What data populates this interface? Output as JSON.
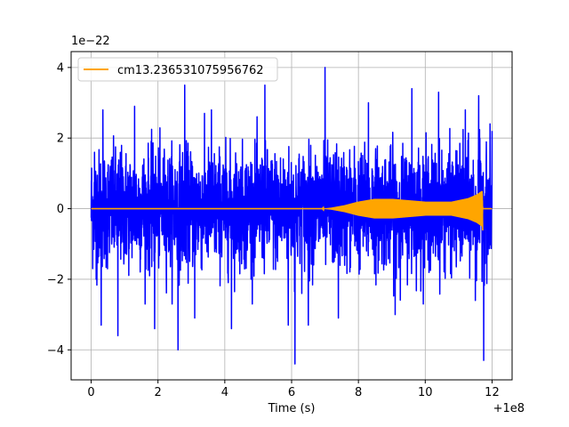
{
  "chart_data": {
    "type": "line",
    "title": "",
    "xlabel": "Time (s)",
    "ylabel": "",
    "x_offset_text": "+1e8",
    "y_scale_text": "1e−22",
    "xlim": [
      -0.6,
      12.6
    ],
    "ylim": [
      -4.85,
      4.45
    ],
    "x_ticks": [
      0,
      2,
      4,
      6,
      8,
      10,
      12
    ],
    "x_tick_labels": [
      "0",
      "2",
      "4",
      "6",
      "8",
      "10",
      "12"
    ],
    "y_ticks": [
      -4,
      -2,
      0,
      2,
      4
    ],
    "y_tick_labels": [
      "−4",
      "−2",
      "0",
      "2",
      "4"
    ],
    "grid": true,
    "legend_position": "top-left",
    "series": [
      {
        "name": "",
        "color": "#0000ff",
        "style": "dense noise",
        "x_range": [
          0,
          12
        ],
        "typical_amplitude": 1.5,
        "spikes": [
          {
            "x": 0.1,
            "y": 1.6
          },
          {
            "x": 0.15,
            "y": -2.0
          },
          {
            "x": 0.3,
            "y": -3.3
          },
          {
            "x": 0.35,
            "y": 2.8
          },
          {
            "x": 0.8,
            "y": -3.6
          },
          {
            "x": 1.3,
            "y": 2.9
          },
          {
            "x": 1.9,
            "y": -3.4
          },
          {
            "x": 2.6,
            "y": -4.0
          },
          {
            "x": 2.8,
            "y": 3.5
          },
          {
            "x": 3.1,
            "y": -3.1
          },
          {
            "x": 3.6,
            "y": 2.8
          },
          {
            "x": 4.2,
            "y": -3.4
          },
          {
            "x": 5.2,
            "y": 3.5
          },
          {
            "x": 5.9,
            "y": -3.3
          },
          {
            "x": 6.1,
            "y": -4.4
          },
          {
            "x": 6.5,
            "y": -3.3
          },
          {
            "x": 7.0,
            "y": 4.0
          },
          {
            "x": 7.4,
            "y": -3.1
          },
          {
            "x": 8.3,
            "y": 3.0
          },
          {
            "x": 9.1,
            "y": -3.0
          },
          {
            "x": 9.6,
            "y": 3.4
          },
          {
            "x": 10.4,
            "y": 3.3
          },
          {
            "x": 11.2,
            "y": 2.8
          },
          {
            "x": 11.5,
            "y": -2.6
          },
          {
            "x": 11.6,
            "y": 3.2
          },
          {
            "x": 11.75,
            "y": -4.3
          },
          {
            "x": 12.0,
            "y": 2.2
          }
        ]
      },
      {
        "name": "cm13.236531075956762",
        "color": "#ffa500",
        "style": "chirp",
        "envelope": [
          {
            "x": 0,
            "y": 0.0
          },
          {
            "x": 6.9,
            "y": 0.0
          },
          {
            "x": 7.2,
            "y": 0.03
          },
          {
            "x": 7.6,
            "y": 0.1
          },
          {
            "x": 8.0,
            "y": 0.2
          },
          {
            "x": 8.5,
            "y": 0.28
          },
          {
            "x": 9.0,
            "y": 0.28
          },
          {
            "x": 10.0,
            "y": 0.2
          },
          {
            "x": 10.8,
            "y": 0.2
          },
          {
            "x": 11.3,
            "y": 0.3
          },
          {
            "x": 11.55,
            "y": 0.4
          },
          {
            "x": 11.7,
            "y": 0.5
          },
          {
            "x": 11.72,
            "y": 0.0
          },
          {
            "x": 12.0,
            "y": 0.0
          }
        ]
      }
    ]
  }
}
